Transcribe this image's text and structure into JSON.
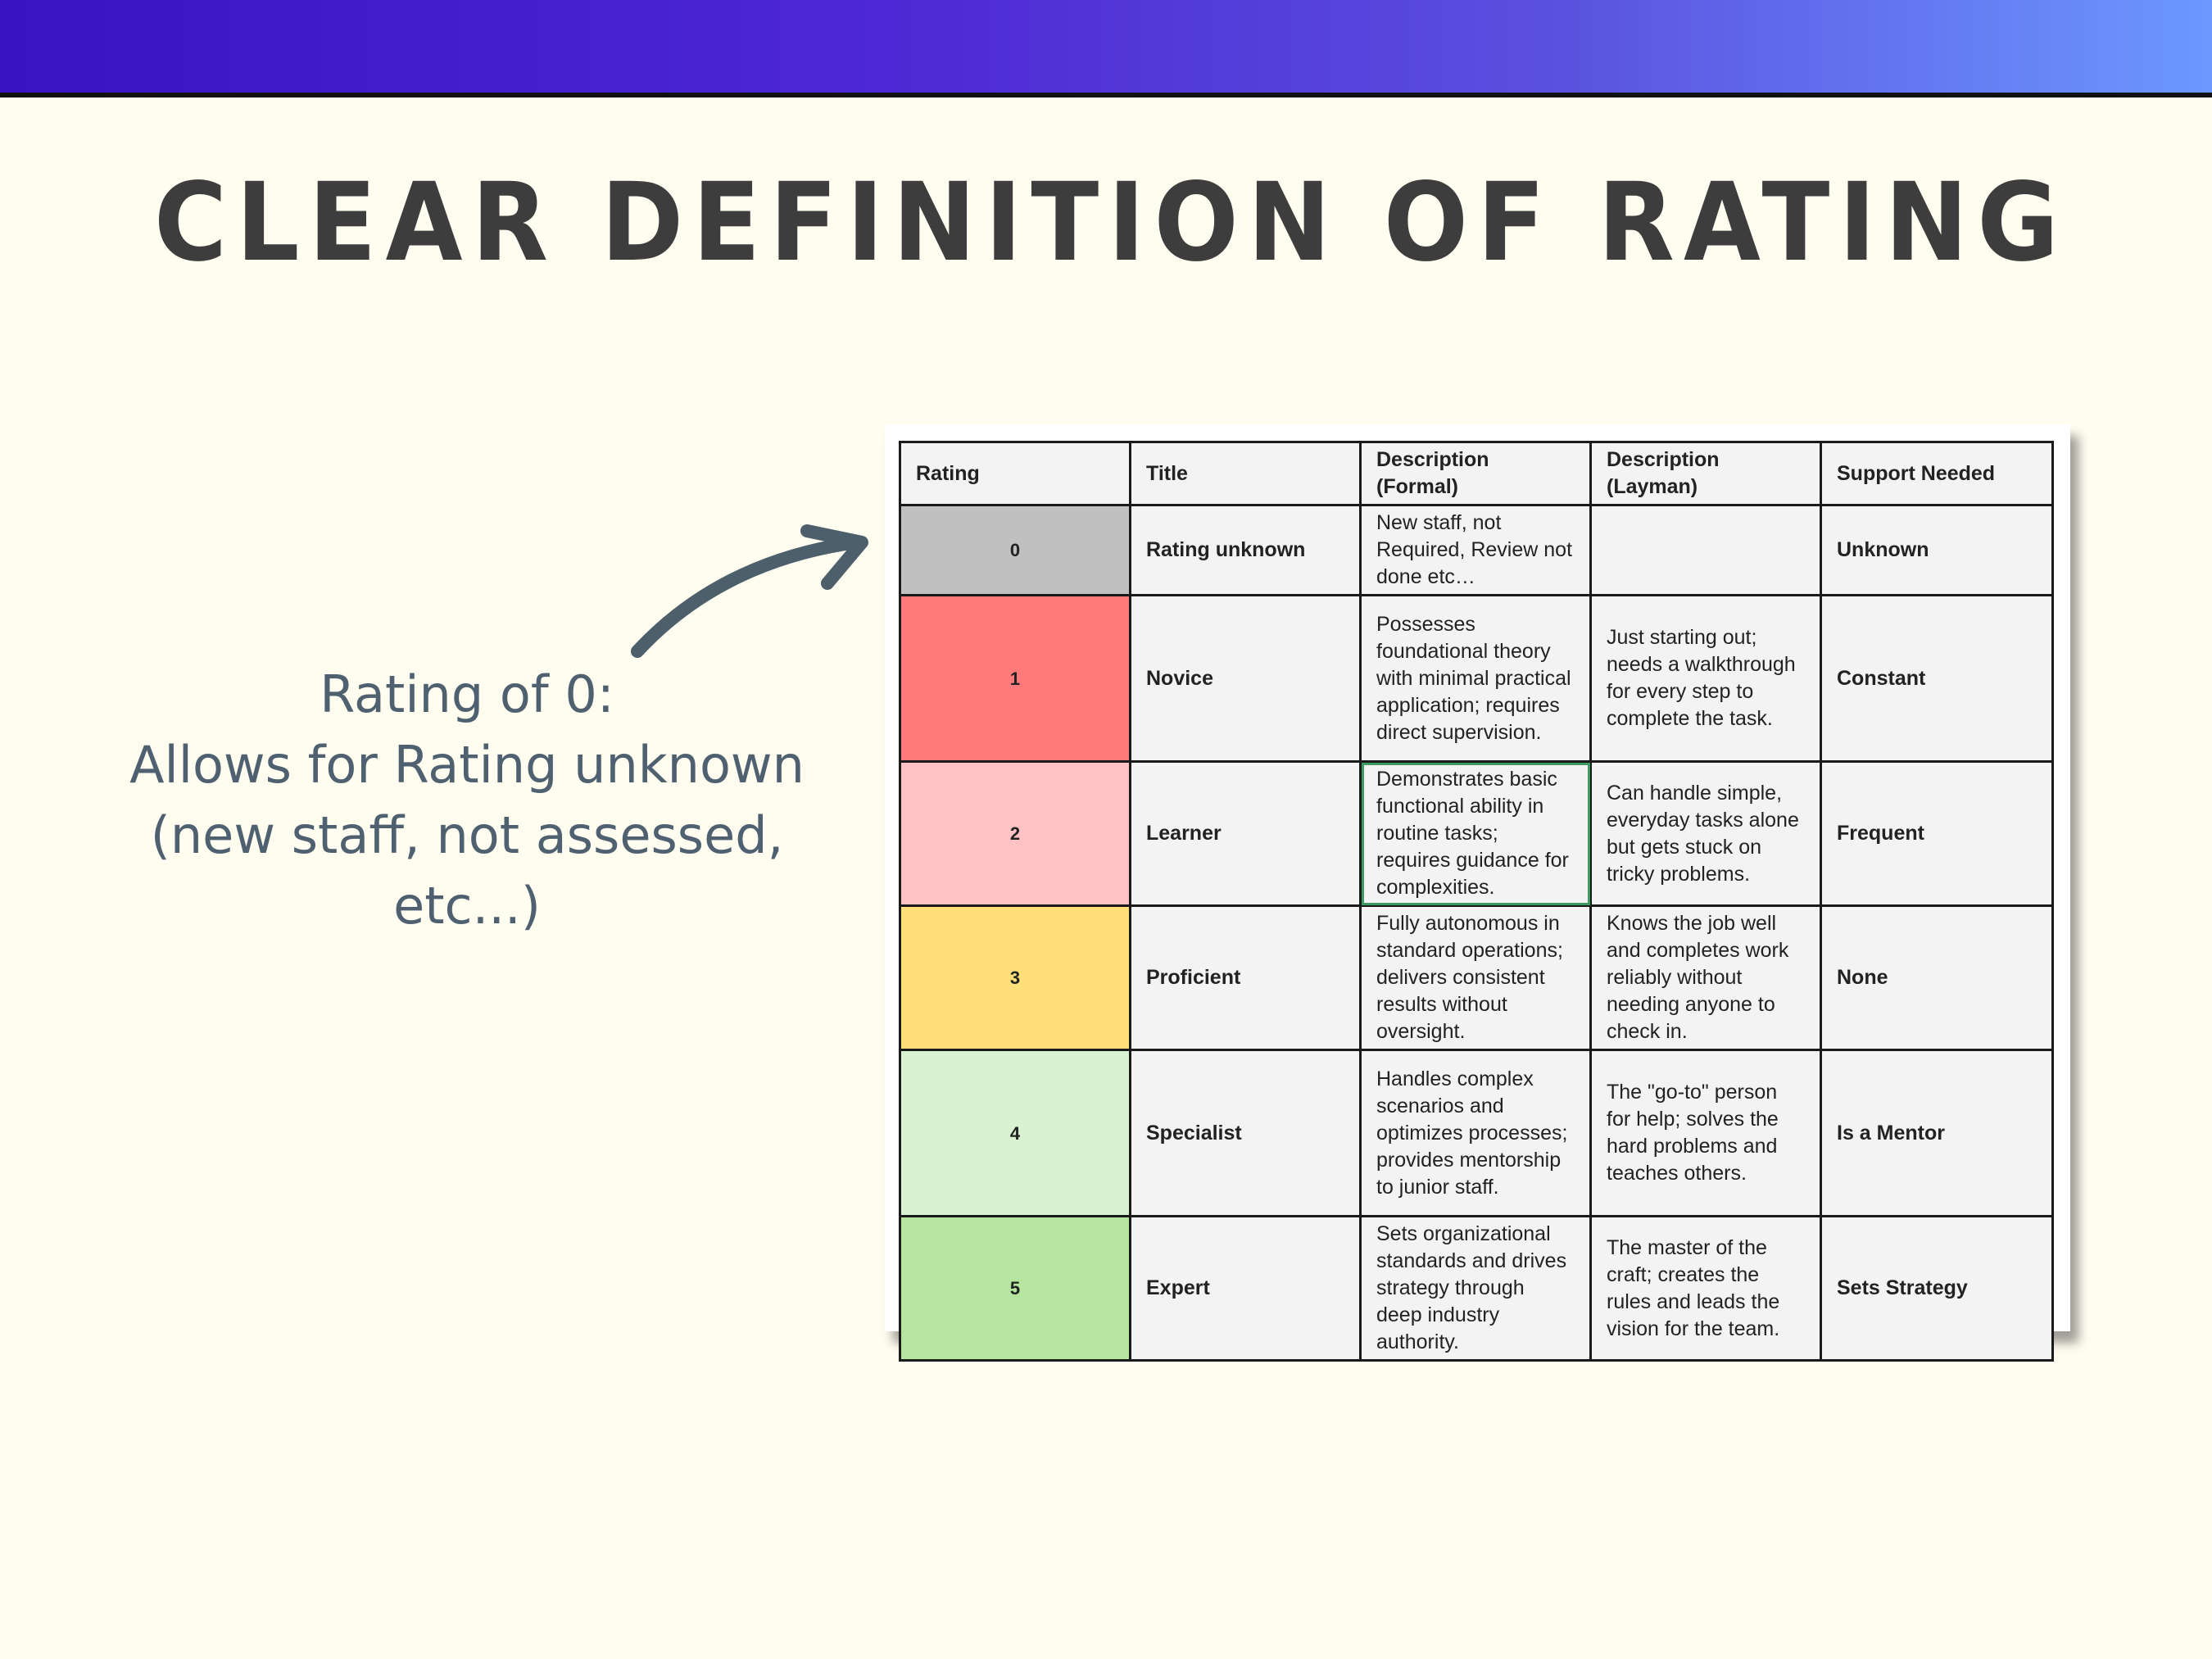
{
  "slide": {
    "title": "CLEAR DEFINITION OF RATING"
  },
  "annotation": {
    "lines": [
      "Rating of 0:",
      "Allows for Rating unknown",
      "(new staff, not assessed,",
      "etc...)"
    ]
  },
  "table": {
    "headers": [
      "Rating",
      "Title",
      "Description (Formal)",
      "Description (Layman)",
      "Support Needed"
    ],
    "rows": [
      {
        "rating": "0",
        "color": "#c0c0c0",
        "title": "Rating unknown",
        "formal": "New staff, not Required, Review not done etc…",
        "layman": "",
        "support": "Unknown"
      },
      {
        "rating": "1",
        "color": "#ff7b7b",
        "title": "Novice",
        "formal": "Possesses foundational theory with minimal practical application; requires direct supervision.",
        "layman": "Just starting out; needs a walkthrough for every step to complete the task.",
        "support": "Constant"
      },
      {
        "rating": "2",
        "color": "#ffc2c4",
        "title": "Learner",
        "formal": "Demonstrates basic functional ability in routine tasks; requires guidance for complexities.",
        "layman": "Can handle simple, everyday tasks alone but gets stuck on tricky problems.",
        "support": "Frequent"
      },
      {
        "rating": "3",
        "color": "#ffdf7a",
        "title": "Proficient",
        "formal": "Fully autonomous in standard operations; delivers consistent results without oversight.",
        "layman": "Knows the job well and completes work reliably without needing anyone to check in.",
        "support": "None"
      },
      {
        "rating": "4",
        "color": "#d8f2d2",
        "title": "Specialist",
        "formal": "Handles complex scenarios and optimizes processes; provides mentorship to junior staff.",
        "layman": "The \"go-to\" person for help; solves the hard problems and teaches others.",
        "support": "Is a Mentor"
      },
      {
        "rating": "5",
        "color": "#b5e59f",
        "title": "Expert",
        "formal": "Sets organizational standards and drives strategy through deep industry authority.",
        "layman": "The master of the craft; creates the rules and leads the vision for the team.",
        "support": "Sets Strategy"
      }
    ]
  },
  "icons": {
    "arrow": "curved-arrow-icon"
  },
  "colors": {
    "background": "#fffcf0",
    "title": "#3d3d3d",
    "annotation": "#4f6170",
    "arrow": "#4e5f6c"
  }
}
